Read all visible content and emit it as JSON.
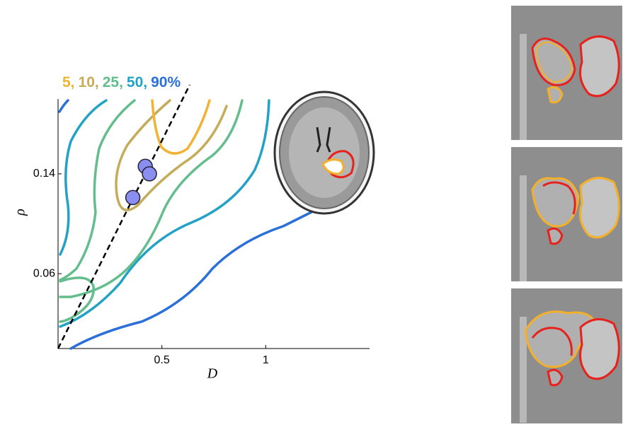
{
  "chart_data": {
    "type": "contour",
    "xlabel": "D",
    "ylabel": "ρ",
    "xlim": [
      0,
      1.5
    ],
    "ylim": [
      0,
      0.2
    ],
    "xticks": [
      0.5,
      1
    ],
    "yticks": [
      0.06,
      0.14
    ],
    "levels": [
      {
        "value": 5,
        "label": "5,"
      },
      {
        "value": 10,
        "label": "10,"
      },
      {
        "value": 25,
        "label": "25,"
      },
      {
        "value": 50,
        "label": "50,"
      },
      {
        "value": 90,
        "label": "90%"
      }
    ],
    "level_colors": [
      "#f2b233",
      "#c4ac5a",
      "#64bd8c",
      "#24a2c6",
      "#2b6fd8"
    ],
    "points": {
      "color": "#8a8ef0",
      "x": [
        0.42,
        0.44,
        0.36
      ],
      "y": [
        0.146,
        0.14,
        0.121
      ]
    }
  }
}
